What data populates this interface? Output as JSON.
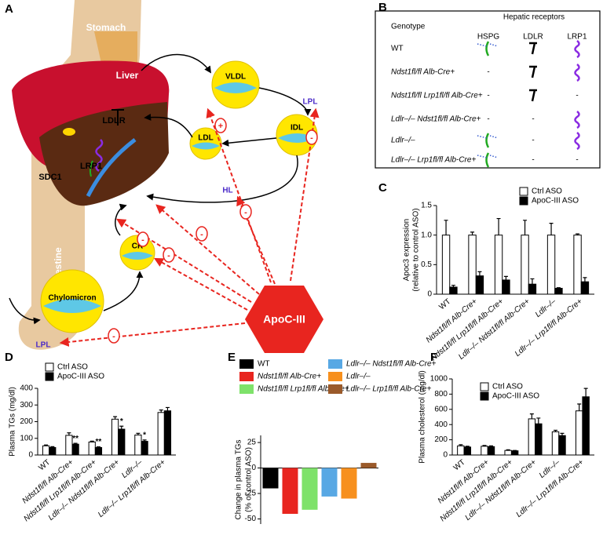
{
  "diagram": {
    "panel": "A",
    "labels": {
      "stomach": "Stomach",
      "liver": "Liver",
      "intestine": "Intestine",
      "ldlr": "LDLR",
      "lrp1": "LRP1",
      "sdc1": "SDC1",
      "vldl": "VLDL",
      "lpl_top": "LPL",
      "idl": "IDL",
      "ldl": "LDL",
      "hl": "HL",
      "cr": "CR",
      "chylomicron": "Chylomicron",
      "lpl_bottom": "LPL",
      "apoc3": "ApoC-III"
    },
    "signs": [
      "+",
      "-",
      "-",
      "-",
      "-",
      "-",
      "-"
    ]
  },
  "table": {
    "panel": "B",
    "title": "Hepatic receptors",
    "header": [
      "Genotype",
      "HSPG",
      "LDLR",
      "LRP1"
    ],
    "rows": [
      {
        "genotype": "WT",
        "cells": [
          null,
          null,
          null
        ]
      },
      {
        "genotype": "Ndst1fl/fl Alb-Cre+",
        "cells": [
          "-",
          null,
          null
        ]
      },
      {
        "genotype": "Ndst1fl/fl Lrp1fl/fl Alb-Cre+",
        "cells": [
          "-",
          null,
          "-"
        ]
      },
      {
        "genotype": "Ldlr–/– Ndst1fl/fl Alb-Cre+",
        "cells": [
          "-",
          "-",
          null
        ]
      },
      {
        "genotype": "Ldlr–/–",
        "cells": [
          null,
          "-",
          null
        ]
      },
      {
        "genotype": "Ldlr–/– Lrp1fl/fl Alb-Cre+",
        "cells": [
          null,
          "-",
          "-"
        ]
      }
    ]
  },
  "chart_data": [
    {
      "panel": "C",
      "type": "bar",
      "ylabel": "Apoc3 expression",
      "ylabel_line2": "(relative to control ASO)",
      "categories": [
        "WT",
        "Ndst1fl/fl Alb-Cre+",
        "Ndst1fl/fl Lrp1fl/fl Alb-Cre+",
        "Ldlr–/– Ndst1fl/fl Alb-Cre+",
        "Ldlr–/–",
        "Ldlr–/– Lrp1fl/fl Alb-Cre+"
      ],
      "series": [
        {
          "name": "Ctrl ASO",
          "color": "#ffffff",
          "values": [
            1,
            1,
            1,
            1,
            1,
            1
          ],
          "errors": [
            0.25,
            0.05,
            0.28,
            0.25,
            0.2,
            0.02
          ]
        },
        {
          "name": "ApoC-III ASO",
          "color": "#000000",
          "values": [
            0.12,
            0.31,
            0.24,
            0.17,
            0.1,
            0.21
          ],
          "errors": [
            0.03,
            0.07,
            0.06,
            0.09,
            0.01,
            0.07
          ]
        }
      ],
      "ylim": [
        0,
        1.5
      ],
      "yticks": [
        0,
        0.5,
        {
          "value": 1,
          "label": "1.0"
        },
        1.5
      ]
    },
    {
      "panel": "D",
      "type": "bar",
      "ylabel": "Plasma TGs (mg/dl)",
      "categories": [
        "WT",
        "Ndst1fl/fl Alb-Cre+",
        "Ndst1fl/fl Lrp1fl/fl Alb-Cre+",
        "Ldlr–/– Ndst1fl/fl Alb-Cre+",
        "Ldlr–/–",
        "Ldlr–/– Lrp1fl/fl Alb-Cre+"
      ],
      "series": [
        {
          "name": "Ctrl ASO",
          "color": "#ffffff",
          "values": [
            55,
            118,
            78,
            215,
            120,
            255
          ],
          "errors": [
            5,
            15,
            5,
            15,
            10,
            15
          ]
        },
        {
          "name": "ApoC-III ASO",
          "color": "#000000",
          "values": [
            45,
            65,
            45,
            155,
            82,
            265
          ],
          "errors": [
            5,
            5,
            4,
            18,
            8,
            20
          ]
        }
      ],
      "annotations": [
        null,
        "**",
        "**",
        "*",
        "*",
        null
      ],
      "ylim": [
        0,
        400
      ],
      "yticks": [
        0,
        100,
        200,
        300,
        400
      ]
    },
    {
      "panel": "E",
      "type": "colorbar",
      "ylabel": "Change in plasma TGs",
      "ylabel_line2": "(% of control ASO)",
      "categories": [
        "WT",
        "Ndst1fl/fl Alb-Cre+",
        "Ndst1fl/fl Lrp1fl/fl Alb-Cre+",
        "Ldlr–/– Ndst1fl/fl Alb-Cre+",
        "Ldlr–/–",
        "Ldlr–/– Lrp1fl/fl Alb-Cre+"
      ],
      "colors": [
        "#000000",
        "#e8251f",
        "#7ee26a",
        "#58a8e4",
        "#f7901e",
        "#9a5a2a"
      ],
      "values": [
        -20,
        -45,
        -41,
        -28,
        -30,
        5
      ],
      "ylim": [
        -55,
        32
      ],
      "yticks": [
        -50,
        -25,
        0,
        25
      ]
    },
    {
      "panel": "F",
      "type": "bar",
      "ylabel": "Plasma cholesterol (mg/dl)",
      "categories": [
        "WT",
        "Ndst1fl/fl Alb-Cre+",
        "Ndst1fl/fl Lrp1fl/fl Alb-Cre+",
        "Ldlr–/– Ndst1fl/fl Alb-Cre+",
        "Ldlr–/–",
        "Ldlr–/– Lrp1fl/fl Alb-Cre+"
      ],
      "series": [
        {
          "name": "Ctrl ASO",
          "color": "#ffffff",
          "values": [
            120,
            115,
            60,
            475,
            305,
            580
          ],
          "errors": [
            15,
            10,
            8,
            65,
            20,
            90
          ]
        },
        {
          "name": "ApoC-III ASO",
          "color": "#000000",
          "values": [
            105,
            110,
            55,
            410,
            255,
            765
          ],
          "errors": [
            10,
            10,
            5,
            75,
            30,
            110
          ]
        }
      ],
      "ylim": [
        0,
        1000
      ],
      "yticks": [
        0,
        200,
        400,
        600,
        800,
        1000
      ]
    }
  ]
}
